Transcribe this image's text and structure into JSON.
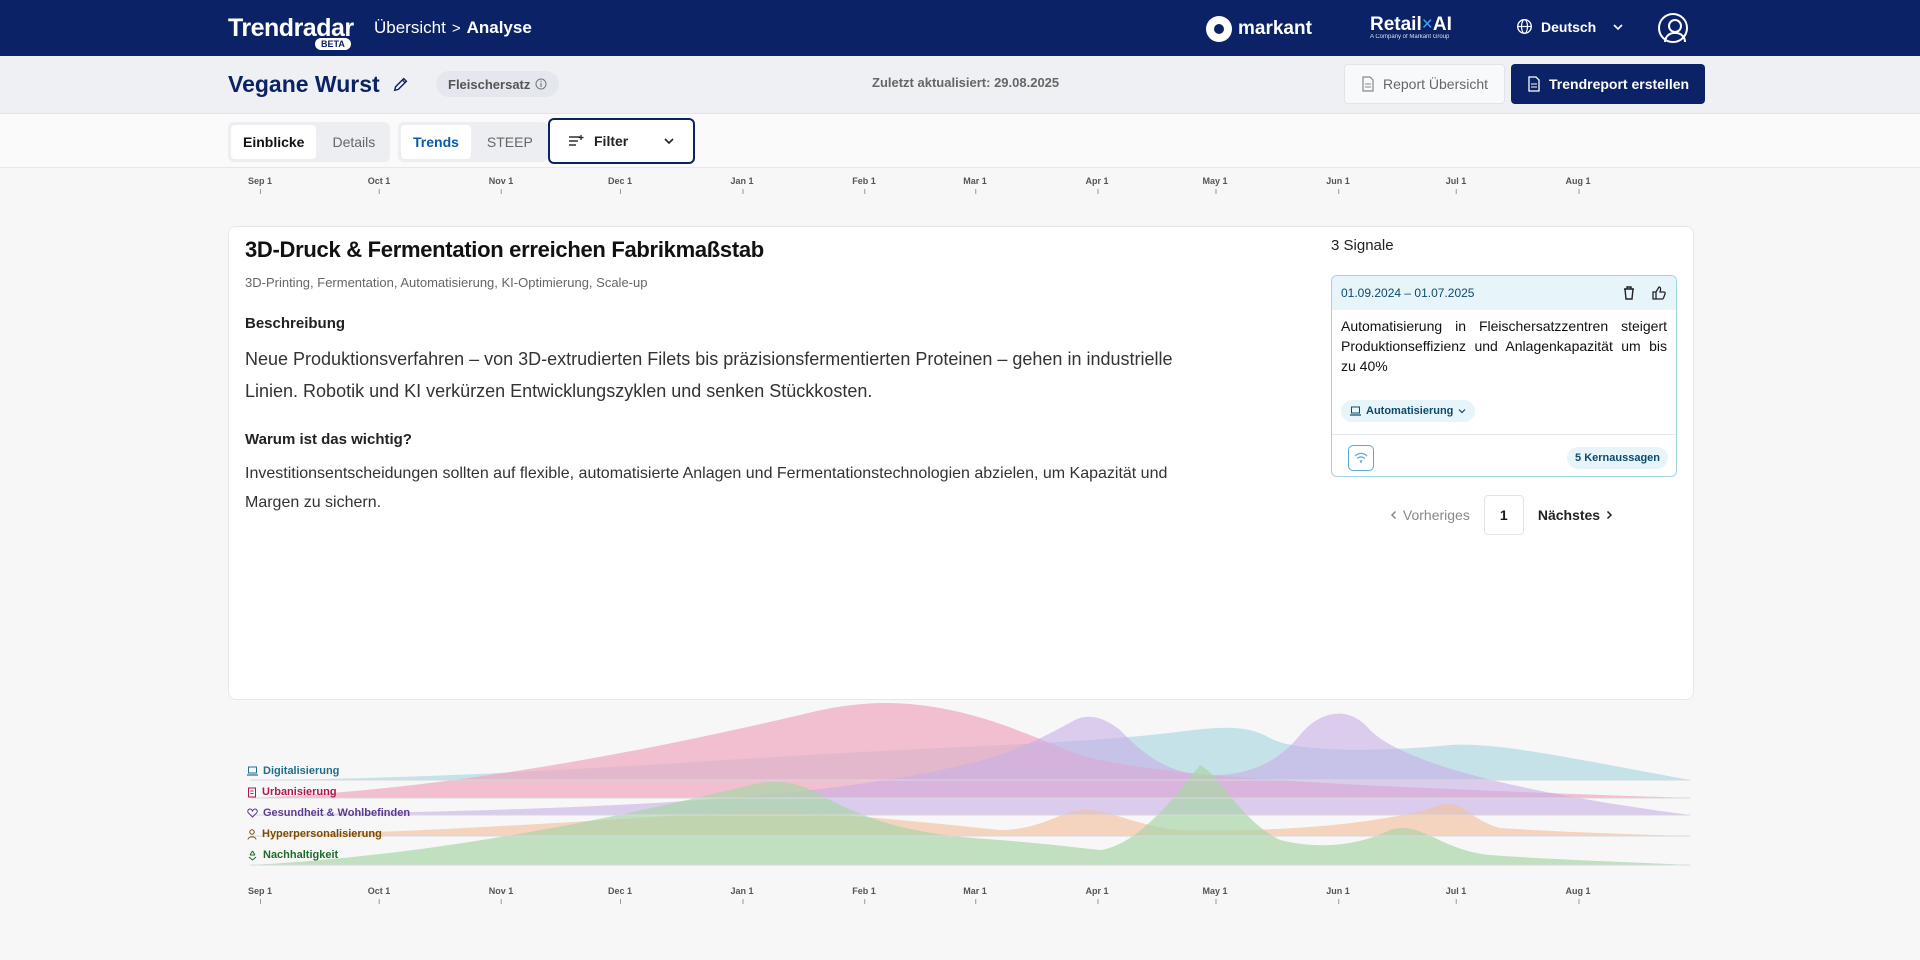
{
  "header": {
    "logo": "Trendradar",
    "beta": "BETA",
    "breadcrumb_root": "Übersicht",
    "breadcrumb_sep": ">",
    "breadcrumb_current": "Analyse",
    "brand_markant": "markant",
    "brand_retail_prefix": "Retail",
    "brand_retail_x": "×",
    "brand_retail_suffix": "AI",
    "brand_retail_sub": "A Company of Markant Group",
    "language": "Deutsch"
  },
  "subheader": {
    "title": "Vegane Wurst",
    "chip": "Fleischersatz",
    "updated": "Zuletzt aktualisiert: 29.08.2025",
    "report_overview": "Report Übersicht",
    "create_report": "Trendreport erstellen"
  },
  "toolbar": {
    "view_tabs": [
      "Einblicke",
      "Details"
    ],
    "mode_tabs": [
      "Trends",
      "STEEP"
    ],
    "filter": "Filter"
  },
  "timeline": {
    "ticks": [
      "Sep 1",
      "Oct 1",
      "Nov 1",
      "Dec 1",
      "Jan 1",
      "Feb 1",
      "Mar 1",
      "Apr 1",
      "May 1",
      "Jun 1",
      "Jul 1",
      "Aug 1"
    ]
  },
  "trend": {
    "title": "3D-Druck & Fermentation erreichen Fabrikmaßstab",
    "tags": "3D-Printing, Fermentation, Automatisierung, KI-Optimierung, Scale-up",
    "desc_heading": "Beschreibung",
    "description": "Neue Produktionsverfahren – von 3D-extrudierten Filets bis präzisionsfermentierten Proteinen – gehen in industrielle Linien. Robotik und KI verkürzen Entwicklungszyklen und senken Stückkosten.",
    "why_heading": "Warum ist das wichtig?",
    "why": "Investitionsentscheidungen sollten auf flexible, automatisierte Anlagen und Fermentationstechnologien abzielen, um Kapazität und Margen zu sichern."
  },
  "signals": {
    "count_label": "3 Signale",
    "card": {
      "date_range": "01.09.2024 – 01.07.2025",
      "text": "Automatisierung in Fleischersatzzentren steigert Produktionseffizienz und Anlagenkapazität um bis zu 40%",
      "tag": "Automatisierung",
      "kernaussagen": "5 Kernaussagen"
    },
    "pager": {
      "prev": "Vorheriges",
      "page": "1",
      "next": "Nächstes"
    }
  },
  "streamgraph": {
    "legend": [
      {
        "label": "Digitalisierung",
        "color": "#1f6f8b",
        "icon": "laptop-icon"
      },
      {
        "label": "Urbanisierung",
        "color": "#b0174f",
        "icon": "building-icon"
      },
      {
        "label": "Gesundheit & Wohlbefinden",
        "color": "#5c3b8f",
        "icon": "heart-icon"
      },
      {
        "label": "Hyperpersonalisierung",
        "color": "#7a4b00",
        "icon": "person-icon"
      },
      {
        "label": "Nachhaltigkeit",
        "color": "#1f6b2a",
        "icon": "recycle-icon"
      }
    ]
  }
}
